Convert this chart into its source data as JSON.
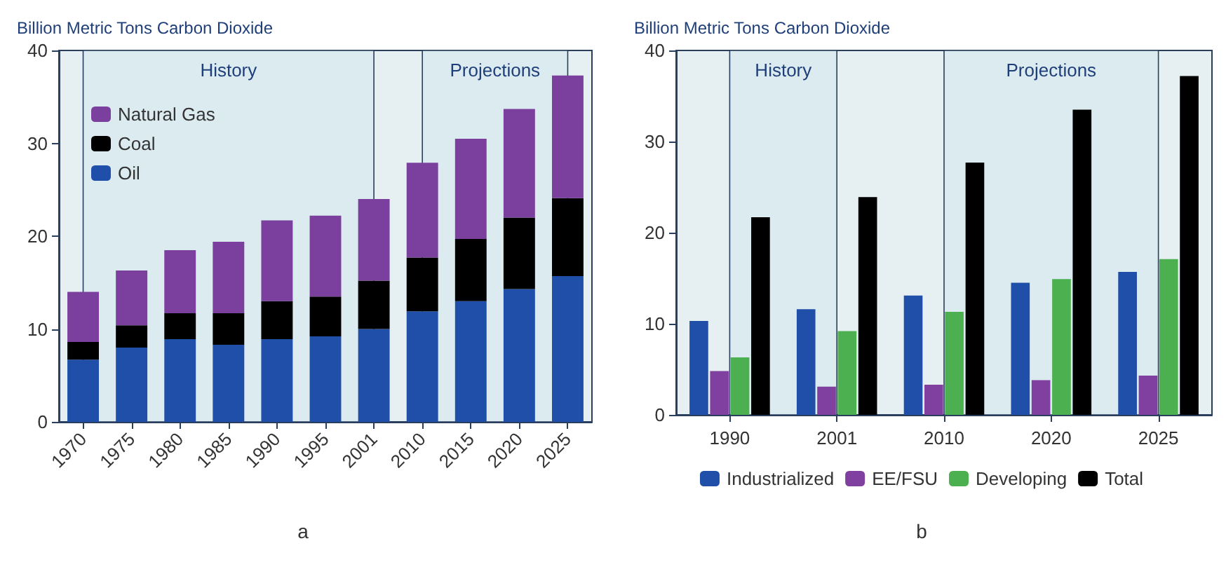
{
  "chart_data": [
    {
      "type": "bar",
      "stacked": true,
      "ylabel": "Billion Metric Tons Carbon Dioxide",
      "categories": [
        "1970",
        "1975",
        "1980",
        "1985",
        "1990",
        "1995",
        "2001",
        "2010",
        "2015",
        "2020",
        "2025"
      ],
      "series": [
        {
          "name": "Oil",
          "color": "#1f4fa8",
          "values": [
            6.7,
            8.0,
            8.9,
            8.3,
            8.9,
            9.2,
            10.0,
            11.9,
            13.0,
            14.3,
            15.7
          ]
        },
        {
          "name": "Coal",
          "color": "#000000",
          "values": [
            1.9,
            2.4,
            2.8,
            3.4,
            4.1,
            4.3,
            5.2,
            5.8,
            6.7,
            7.7,
            8.4
          ]
        },
        {
          "name": "Natural Gas",
          "color": "#7b3f9e",
          "values": [
            5.4,
            5.9,
            6.8,
            7.7,
            8.7,
            8.7,
            8.8,
            10.2,
            10.8,
            11.7,
            13.2
          ]
        }
      ],
      "ylim": [
        0,
        40
      ],
      "yticks": [
        0,
        10,
        20,
        30,
        40
      ],
      "grid": false,
      "legend": "top left",
      "bands": [
        {
          "axis": "x",
          "from": "1970",
          "to": "2001",
          "label": "History",
          "color": "#dcebf0"
        },
        {
          "axis": "x",
          "from": "2010",
          "to": "2025",
          "label": "Projections",
          "color": "#dcebf0"
        }
      ],
      "annotations": [
        "a"
      ]
    },
    {
      "type": "bar",
      "ylabel": "Billion Metric Tons Carbon Dioxide",
      "categories": [
        "1990",
        "2001",
        "2010",
        "2020",
        "2025"
      ],
      "series": [
        {
          "name": "Industrialized",
          "color": "#1f4fa8",
          "values": [
            10.3,
            11.6,
            13.1,
            14.5,
            15.7
          ]
        },
        {
          "name": "EE/FSU",
          "color": "#8040a0",
          "values": [
            4.8,
            3.1,
            3.3,
            3.8,
            4.3
          ]
        },
        {
          "name": "Developing",
          "color": "#4caf50",
          "values": [
            6.3,
            9.2,
            11.3,
            14.9,
            17.1
          ]
        },
        {
          "name": "Total",
          "color": "#000000",
          "values": [
            21.7,
            23.9,
            27.7,
            33.5,
            37.2
          ]
        }
      ],
      "ylim": [
        0,
        40
      ],
      "yticks": [
        0,
        10,
        20,
        30,
        40
      ],
      "grid": false,
      "legend": "bottom",
      "bands": [
        {
          "axis": "x",
          "from": "1990",
          "to": "2001",
          "label": "History",
          "color": "#dcebf0"
        },
        {
          "axis": "x",
          "from": "2010",
          "to": "2025",
          "label": "Projections",
          "color": "#dcebf0"
        }
      ],
      "annotations": [
        "b"
      ]
    }
  ]
}
